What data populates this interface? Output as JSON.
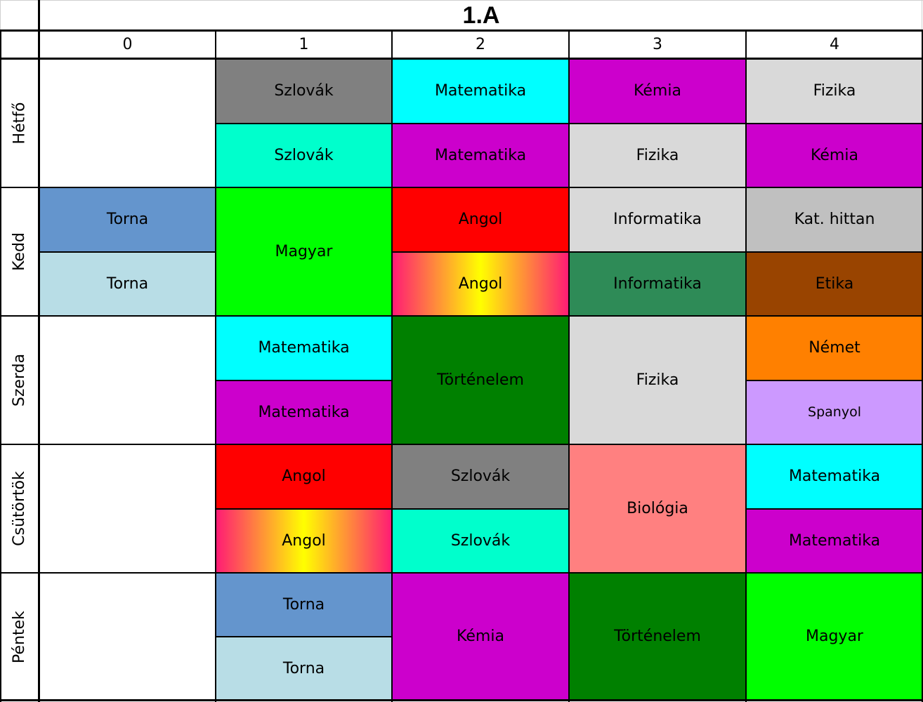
{
  "title": "1.A",
  "periods": [
    "0",
    "1",
    "2",
    "3",
    "4"
  ],
  "days": [
    "Hétfő",
    "Kedd",
    "Szerda",
    "Csütörtök",
    "Péntek"
  ],
  "colors": {
    "gray": "#808080",
    "cyan": "#00ffff",
    "magenta": "#cc00cc",
    "light_gray": "#d9d9d9",
    "aquamarine": "#00ffcc",
    "steel_blue": "#6495cd",
    "light_blue": "#b8dde6",
    "bright_green": "#00ff00",
    "red": "#ff0000",
    "angol_gradient": "linear-gradient(to right, #ff1a75, #ffff00, #ff1a75)",
    "silver": "#c0c0c0",
    "sea_green": "#2e8b57",
    "brown": "#994400",
    "dark_green": "#008000",
    "orange": "#ff8000",
    "lavender": "#cc99ff",
    "salmon": "#ff8080"
  },
  "lessons": [
    {
      "day": 0,
      "period": 1,
      "half": "top",
      "subject": "Szlovák",
      "color": "gray"
    },
    {
      "day": 0,
      "period": 1,
      "half": "bottom",
      "subject": "Szlovák",
      "color": "aquamarine"
    },
    {
      "day": 0,
      "period": 2,
      "half": "top",
      "subject": "Matematika",
      "color": "cyan"
    },
    {
      "day": 0,
      "period": 2,
      "half": "bottom",
      "subject": "Matematika",
      "color": "magenta"
    },
    {
      "day": 0,
      "period": 3,
      "half": "top",
      "subject": "Kémia",
      "color": "magenta"
    },
    {
      "day": 0,
      "period": 3,
      "half": "bottom",
      "subject": "Fizika",
      "color": "light_gray"
    },
    {
      "day": 0,
      "period": 4,
      "half": "top",
      "subject": "Fizika",
      "color": "light_gray"
    },
    {
      "day": 0,
      "period": 4,
      "half": "bottom",
      "subject": "Kémia",
      "color": "magenta"
    },
    {
      "day": 1,
      "period": 0,
      "half": "top",
      "subject": "Torna",
      "color": "steel_blue"
    },
    {
      "day": 1,
      "period": 0,
      "half": "bottom",
      "subject": "Torna",
      "color": "light_blue"
    },
    {
      "day": 1,
      "period": 1,
      "half": "full",
      "subject": "Magyar",
      "color": "bright_green"
    },
    {
      "day": 1,
      "period": 2,
      "half": "top",
      "subject": "Angol",
      "color": "red"
    },
    {
      "day": 1,
      "period": 2,
      "half": "bottom",
      "subject": "Angol",
      "color": "angol_gradient"
    },
    {
      "day": 1,
      "period": 3,
      "half": "top",
      "subject": "Informatika",
      "color": "light_gray"
    },
    {
      "day": 1,
      "period": 3,
      "half": "bottom",
      "subject": "Informatika",
      "color": "sea_green"
    },
    {
      "day": 1,
      "period": 4,
      "half": "top",
      "subject": "Kat. hittan",
      "color": "silver"
    },
    {
      "day": 1,
      "period": 4,
      "half": "bottom",
      "subject": "Etika",
      "color": "brown"
    },
    {
      "day": 2,
      "period": 1,
      "half": "top",
      "subject": "Matematika",
      "color": "cyan"
    },
    {
      "day": 2,
      "period": 1,
      "half": "bottom",
      "subject": "Matematika",
      "color": "magenta"
    },
    {
      "day": 2,
      "period": 2,
      "half": "full",
      "subject": "Történelem",
      "color": "dark_green"
    },
    {
      "day": 2,
      "period": 3,
      "half": "full",
      "subject": "Fizika",
      "color": "light_gray"
    },
    {
      "day": 2,
      "period": 4,
      "half": "top",
      "subject": "Német",
      "color": "orange"
    },
    {
      "day": 2,
      "period": 4,
      "half": "bottom",
      "subject": "Spanyol",
      "color": "lavender"
    },
    {
      "day": 3,
      "period": 1,
      "half": "top",
      "subject": "Angol",
      "color": "red"
    },
    {
      "day": 3,
      "period": 1,
      "half": "bottom",
      "subject": "Angol",
      "color": "angol_gradient"
    },
    {
      "day": 3,
      "period": 2,
      "half": "top",
      "subject": "Szlovák",
      "color": "gray"
    },
    {
      "day": 3,
      "period": 2,
      "half": "bottom",
      "subject": "Szlovák",
      "color": "aquamarine"
    },
    {
      "day": 3,
      "period": 3,
      "half": "full",
      "subject": "Biológia",
      "color": "salmon"
    },
    {
      "day": 3,
      "period": 4,
      "half": "top",
      "subject": "Matematika",
      "color": "cyan"
    },
    {
      "day": 3,
      "period": 4,
      "half": "bottom",
      "subject": "Matematika",
      "color": "magenta"
    },
    {
      "day": 4,
      "period": 1,
      "half": "top",
      "subject": "Torna",
      "color": "steel_blue"
    },
    {
      "day": 4,
      "period": 1,
      "half": "bottom",
      "subject": "Torna",
      "color": "light_blue"
    },
    {
      "day": 4,
      "period": 2,
      "half": "full",
      "subject": "Kémia",
      "color": "magenta"
    },
    {
      "day": 4,
      "period": 3,
      "half": "full",
      "subject": "Történelem",
      "color": "dark_green"
    },
    {
      "day": 4,
      "period": 4,
      "half": "full",
      "subject": "Magyar",
      "color": "bright_green"
    }
  ]
}
